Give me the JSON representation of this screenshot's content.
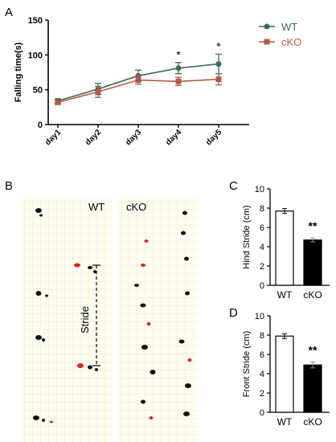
{
  "panels": {
    "a": "A",
    "b": "B",
    "c": "C",
    "d": "D"
  },
  "colors": {
    "wt": "#3f6b55",
    "cko": "#b25a46",
    "bar_wt": "#ffffff",
    "bar_cko": "#000000",
    "grid": "#e9e4b4",
    "red_prints": "#d8251d"
  },
  "footprint": {
    "wt_label": "WT",
    "cko_label": "cKO",
    "stride_label": "Stride"
  },
  "chart_data": [
    {
      "panel": "A",
      "type": "line",
      "ylabel": "Falling time(s)",
      "xlabel": "",
      "categories": [
        "day1",
        "day2",
        "day3",
        "day4",
        "day5"
      ],
      "ylim": [
        0,
        150
      ],
      "yticks": [
        0,
        50,
        100,
        150
      ],
      "legend_position": "top-right",
      "series": [
        {
          "name": "WT",
          "values": [
            34,
            51,
            70,
            81,
            87
          ],
          "errors": [
            3,
            8,
            8,
            8,
            14
          ]
        },
        {
          "name": "cKO",
          "values": [
            32,
            47,
            64,
            62,
            65
          ],
          "errors": [
            3,
            8,
            6,
            6,
            8
          ]
        }
      ],
      "annotations": [
        {
          "category": "day4",
          "text": "*"
        },
        {
          "category": "day5",
          "text": "*"
        }
      ]
    },
    {
      "panel": "C",
      "type": "bar",
      "ylabel": "Hind Stride  (cm)",
      "categories": [
        "WT",
        "cKO"
      ],
      "values": [
        7.7,
        4.7
      ],
      "errors": [
        0.25,
        0.2
      ],
      "ylim": [
        0,
        10
      ],
      "yticks": [
        0,
        2,
        4,
        6,
        8,
        10
      ],
      "annotations": [
        {
          "category": "cKO",
          "text": "**"
        }
      ]
    },
    {
      "panel": "D",
      "type": "bar",
      "ylabel": "Front Stride  (cm)",
      "categories": [
        "WT",
        "cKO"
      ],
      "values": [
        7.9,
        4.9
      ],
      "errors": [
        0.25,
        0.3
      ],
      "ylim": [
        0,
        10
      ],
      "yticks": [
        0,
        2,
        4,
        6,
        8,
        10
      ],
      "annotations": [
        {
          "category": "cKO",
          "text": "**"
        }
      ]
    }
  ]
}
